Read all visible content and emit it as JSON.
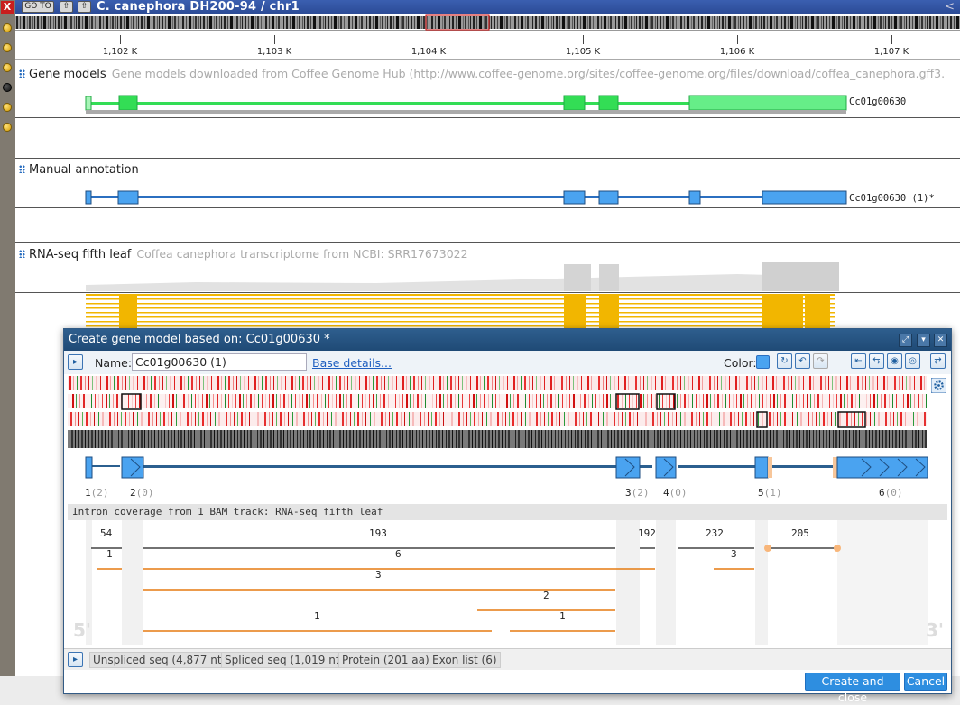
{
  "left_toolbar": {
    "close_label": "X"
  },
  "titlebar": {
    "goto_label": "GO TO",
    "title": "C. canephora DH200-94 / chr1",
    "collapse_label": "<"
  },
  "ruler": {
    "ticks": [
      "1,102 K",
      "1,103 K",
      "1,104 K",
      "1,105 K",
      "1,106 K",
      "1,107 K"
    ]
  },
  "tracks": {
    "gene_models": {
      "label": "Gene models",
      "description": "Gene models downloaded from Coffee Genome Hub  (http://www.coffee-genome.org/sites/coffee-genome.org/files/download/coffea_canephora.gff3.",
      "feature_label": "Cc01g00630",
      "color": "#33dd55"
    },
    "manual_annotation": {
      "label": "Manual annotation",
      "feature_label": "Cc01g00630 (1)*",
      "color": "#2b6fc0"
    },
    "rnaseq": {
      "label": "RNA-seq fifth leaf",
      "description": "Coffea canephora transcriptome from NCBI: SRR17673022",
      "read_color": "#f2b600"
    }
  },
  "dialog": {
    "title": "Create gene model based on: Cc01g00630 *",
    "name_label": "Name:",
    "name_value": "Cc01g00630 (1)",
    "base_details_label": "Base details...",
    "color_label": "Color:",
    "color_value": "#4aa3f0",
    "exon_labels": [
      {
        "num": "1",
        "cov": "(2)"
      },
      {
        "num": "2",
        "cov": "(0)"
      },
      {
        "num": "3",
        "cov": "(2)"
      },
      {
        "num": "4",
        "cov": "(0)"
      },
      {
        "num": "5",
        "cov": "(1)"
      },
      {
        "num": "6",
        "cov": "(0)"
      }
    ],
    "intron_header": "Intron coverage from 1 BAM track: RNA-seq fifth leaf",
    "intron_counts": {
      "row1": [
        "54",
        "193",
        "192",
        "232",
        "205"
      ],
      "row2": [
        "1",
        "6",
        "3"
      ],
      "row3": [
        "3"
      ],
      "row4": [
        "2"
      ],
      "row5": [
        "1",
        "1"
      ]
    },
    "five_prime": "5'",
    "three_prime": "3'",
    "tabs": [
      "Unspliced seq (4,877 nt)",
      "Spliced seq (1,019 nt)",
      "Protein (201 aa)",
      "Exon list (6)"
    ],
    "create_label": "Create and close",
    "cancel_label": "Cancel"
  }
}
